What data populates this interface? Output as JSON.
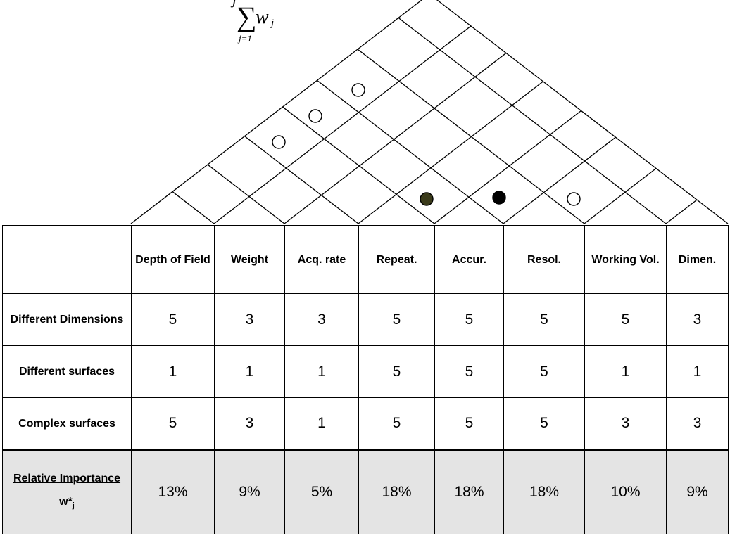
{
  "formula": {
    "top_index": "j",
    "symbol": "∑",
    "term": "w",
    "term_subscript": "j",
    "lower_limit": "j=1"
  },
  "roof_markers": [
    {
      "name": "open-circle-marker",
      "fill": "#ffffff"
    },
    {
      "name": "open-circle-marker",
      "fill": "#ffffff"
    },
    {
      "name": "open-circle-marker",
      "fill": "#ffffff"
    },
    {
      "name": "filled-circle-marker",
      "fill": "#3a3a1a"
    },
    {
      "name": "filled-circle-marker",
      "fill": "#000000"
    },
    {
      "name": "open-circle-marker",
      "fill": "#ffffff"
    }
  ],
  "table": {
    "columns": [
      "Depth of Field",
      "Weight",
      "Acq. rate",
      "Repeat.",
      "Accur.",
      "Resol.",
      "Working Vol.",
      "Dimen."
    ],
    "rows": [
      {
        "label": "Different Dimensions",
        "values": [
          "5",
          "3",
          "3",
          "5",
          "5",
          "5",
          "5",
          "3"
        ]
      },
      {
        "label": "Different surfaces",
        "values": [
          "1",
          "1",
          "1",
          "5",
          "5",
          "5",
          "1",
          "1"
        ]
      },
      {
        "label": "Complex surfaces",
        "values": [
          "5",
          "3",
          "1",
          "5",
          "5",
          "5",
          "3",
          "3"
        ]
      }
    ],
    "importance": {
      "label": "Relative Importance",
      "symbol": "w*",
      "symbol_subscript": "j",
      "values": [
        "13%",
        "9%",
        "5%",
        "18%",
        "18%",
        "18%",
        "10%",
        "9%"
      ]
    }
  }
}
